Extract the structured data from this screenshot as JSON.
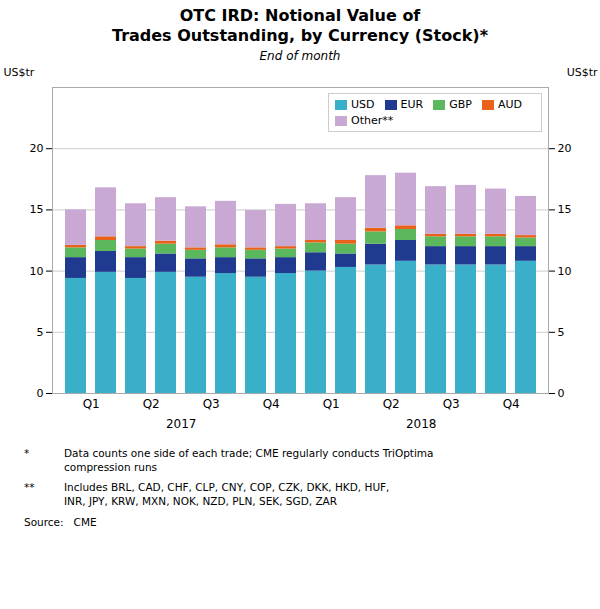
{
  "chart_data": {
    "type": "bar",
    "title": "OTC IRD: Notional Value of\nTrades Outstanding, by Currency (Stock)*",
    "subtitle": "End of month",
    "ylabel": "US$tr",
    "y2label": "US$tr",
    "categories": [
      "Q1",
      null,
      "Q2",
      null,
      "Q3",
      null,
      "Q4",
      null,
      "Q1",
      null,
      "Q2",
      null,
      "Q3",
      null,
      "Q4",
      null
    ],
    "annotations": [
      "2017",
      "2018"
    ],
    "series": [
      {
        "name": "USD",
        "color": "#3AAFCA",
        "values": [
          9.4,
          9.9,
          9.4,
          9.9,
          9.5,
          9.8,
          9.5,
          9.8,
          10.0,
          10.3,
          10.5,
          10.8,
          10.5,
          10.5,
          10.5,
          10.8
        ]
      },
      {
        "name": "EUR",
        "color": "#1F3A8F",
        "values": [
          1.7,
          1.7,
          1.7,
          1.5,
          1.5,
          1.3,
          1.5,
          1.3,
          1.5,
          1.1,
          1.7,
          1.7,
          1.5,
          1.5,
          1.5,
          1.2
        ]
      },
      {
        "name": "GBP",
        "color": "#5CB85C",
        "values": [
          0.8,
          0.9,
          0.7,
          0.8,
          0.7,
          0.8,
          0.7,
          0.7,
          0.8,
          0.8,
          1.0,
          0.9,
          0.8,
          0.8,
          0.8,
          0.7
        ]
      },
      {
        "name": "AUD",
        "color": "#E8621A",
        "values": [
          0.2,
          0.3,
          0.2,
          0.25,
          0.2,
          0.25,
          0.2,
          0.2,
          0.2,
          0.3,
          0.3,
          0.3,
          0.2,
          0.2,
          0.2,
          0.2
        ]
      },
      {
        "name": "Other**",
        "color": "#C9A8D4",
        "values": [
          2.9,
          4.0,
          3.5,
          3.55,
          3.35,
          3.55,
          3.05,
          3.45,
          3.0,
          3.5,
          4.3,
          4.3,
          3.9,
          4.0,
          3.7,
          3.2
        ]
      }
    ],
    "stacked": true,
    "ylim": [
      0,
      25
    ],
    "yticks": [
      0,
      5,
      10,
      15,
      20
    ],
    "y2lim": [
      0,
      25
    ],
    "y2ticks": [
      0,
      5,
      10,
      15,
      20
    ],
    "grid": true,
    "legend": "upper right",
    "footnotes": [
      [
        "*",
        "Data counts one side of each trade; CME regularly conducts TriOptima\ncompression runs"
      ],
      [
        "**",
        "Includes BRL, CAD, CHF, CLP, CNY, COP, CZK, DKK, HKD, HUF,\nINR, JPY, KRW, MXN, NOK, NZD, PLN, SEK, SGD, ZAR"
      ],
      [
        "Source:   CME"
      ]
    ]
  }
}
